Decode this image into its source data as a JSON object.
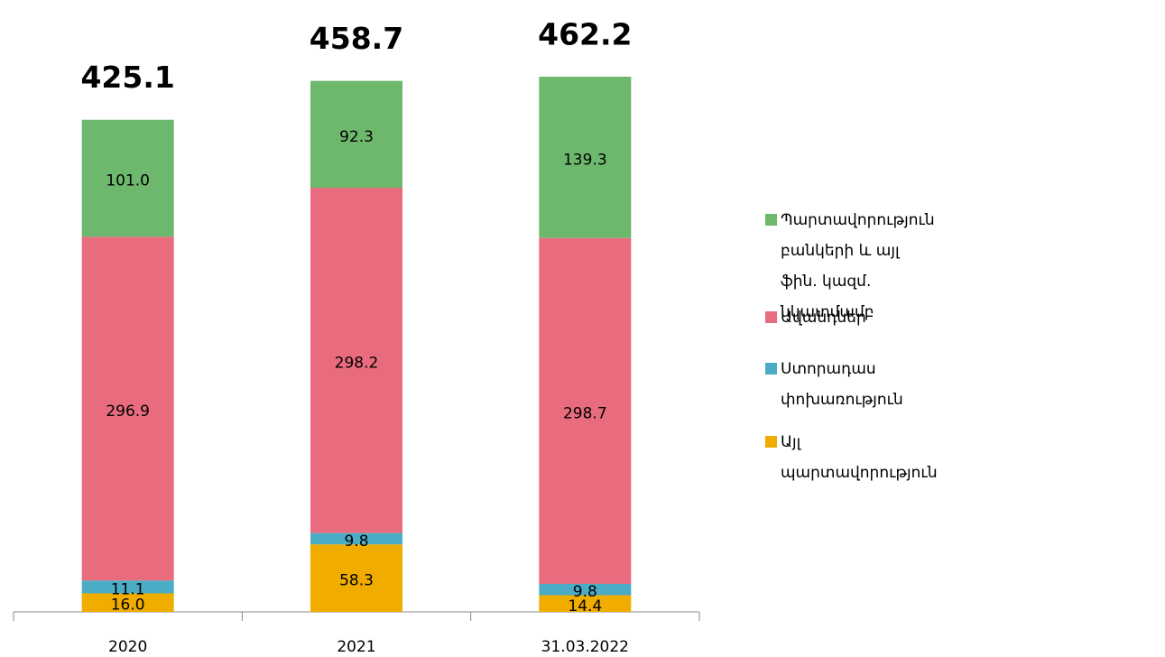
{
  "chart_data": {
    "type": "stacked_bar",
    "categories": [
      "2020",
      "2021",
      "31.03.2022"
    ],
    "series": [
      {
        "name": "Այլ պարտավորություն",
        "color": "#f0ad00",
        "values": [
          16.0,
          58.3,
          14.4
        ],
        "value_labels": [
          "16.0",
          "58.3",
          "14.4"
        ]
      },
      {
        "name": "Ստորադաս փոխառություն",
        "color": "#4bacc6",
        "values": [
          11.1,
          9.8,
          9.8
        ]
      },
      {
        "name": "Ավանդներ",
        "color": "#e86c7e",
        "values": [
          296.9,
          298.2,
          298.7
        ]
      },
      {
        "name": "Պարտավորություն բանկերի և այլ ֆին. կազմ. նկատմամբ",
        "color": "#6db86d",
        "values": [
          101.0,
          92.3,
          139.3
        ],
        "value_labels": [
          "101.0",
          "92.3",
          "139.3"
        ]
      }
    ],
    "totals": [
      425.1,
      458.7,
      462.2
    ],
    "legend": "right"
  }
}
